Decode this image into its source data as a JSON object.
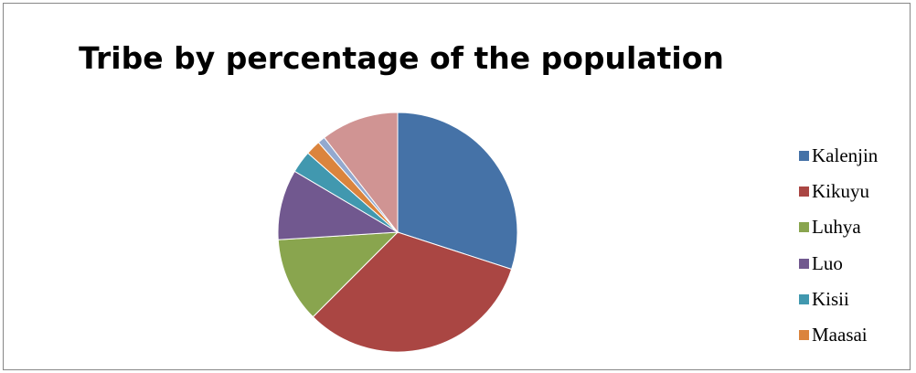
{
  "chart_data": {
    "type": "pie",
    "title": "Tribe by percentage of the population",
    "slices": [
      {
        "label": "Kalenjin",
        "value": 30.0,
        "color": "#4572A7"
      },
      {
        "label": "Kikuyu",
        "value": 32.5,
        "color": "#AA4643"
      },
      {
        "label": "Luhya",
        "value": 11.5,
        "color": "#89A54E"
      },
      {
        "label": "Luo",
        "value": 9.5,
        "color": "#71588F"
      },
      {
        "label": "Kisii",
        "value": 3.0,
        "color": "#4198AF"
      },
      {
        "label": "Maasai",
        "value": 2.0,
        "color": "#DB843D"
      },
      {
        "label": "",
        "value": 1.0,
        "color": "#93A9CF"
      },
      {
        "label": "",
        "value": 10.5,
        "color": "#D09493"
      }
    ],
    "visible_legend": [
      "Kalenjin",
      "Kikuyu",
      "Luhya",
      "Luo",
      "Kisii",
      "Maasai"
    ],
    "legend_position": "right"
  }
}
